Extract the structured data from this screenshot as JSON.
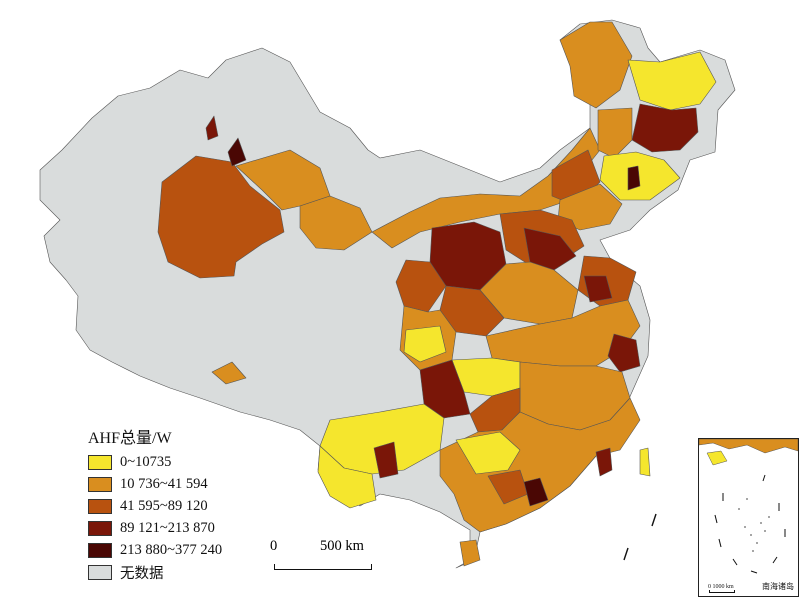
{
  "legend": {
    "title": "AHF总量/W",
    "items": [
      {
        "label": "0~10735",
        "color": "#f5e62d"
      },
      {
        "label": "10 736~41 594",
        "color": "#d98e1f"
      },
      {
        "label": "41 595~89 120",
        "color": "#b8520f"
      },
      {
        "label": "89 121~213 870",
        "color": "#7a1608"
      },
      {
        "label": "213 880~377 240",
        "color": "#4a0704"
      },
      {
        "label": "无数据",
        "color": "#d9dcdc"
      }
    ]
  },
  "scale_bar": {
    "zero": "0",
    "distance": "500 km"
  },
  "inset": {
    "label": "南海诸岛",
    "scale_zero": "0",
    "scale_distance": "1000 km"
  },
  "colors": {
    "boundary": "#555555",
    "no_data": "#d9dcdc",
    "background": "#ffffff"
  }
}
